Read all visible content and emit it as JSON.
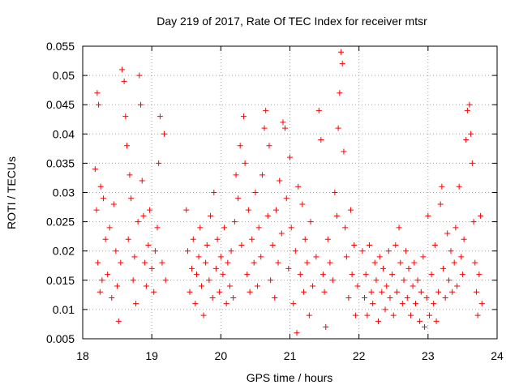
{
  "chart_data": {
    "type": "scatter",
    "title": "Day 219 of 2017, Rate Of TEC Index for receiver mtsr",
    "xlabel": "GPS time / hours",
    "ylabel": "ROTI / TECUs",
    "xlim": [
      18,
      24
    ],
    "ylim": [
      0.005,
      0.055
    ],
    "xticks": [
      "18",
      "19",
      "20",
      "21",
      "22",
      "23",
      "24"
    ],
    "yticks": [
      "0.005",
      "0.01",
      "0.015",
      "0.02",
      "0.025",
      "0.03",
      "0.035",
      "0.04",
      "0.045",
      "0.05",
      "0.055"
    ],
    "grid": true,
    "marker": "+",
    "color": "#ff0000",
    "series": [
      {
        "points": [
          [
            18.18,
            0.034
          ],
          [
            18.21,
            0.047
          ],
          [
            18.23,
            0.045
          ],
          [
            18.2,
            0.027
          ],
          [
            18.26,
            0.031
          ],
          [
            18.3,
            0.029
          ],
          [
            18.22,
            0.018
          ],
          [
            18.25,
            0.013
          ],
          [
            18.28,
            0.015
          ],
          [
            18.33,
            0.022
          ],
          [
            18.36,
            0.016
          ],
          [
            18.39,
            0.024
          ],
          [
            18.42,
            0.012
          ],
          [
            18.45,
            0.028
          ],
          [
            18.48,
            0.02
          ],
          [
            18.5,
            0.014
          ],
          [
            18.52,
            0.008
          ],
          [
            18.55,
            0.018
          ],
          [
            18.57,
            0.051
          ],
          [
            18.6,
            0.049
          ],
          [
            18.62,
            0.043
          ],
          [
            18.64,
            0.038
          ],
          [
            18.66,
            0.022
          ],
          [
            18.68,
            0.033
          ],
          [
            18.7,
            0.029
          ],
          [
            18.73,
            0.015
          ],
          [
            18.75,
            0.019
          ],
          [
            18.77,
            0.011
          ],
          [
            18.8,
            0.025
          ],
          [
            18.82,
            0.05
          ],
          [
            18.84,
            0.045
          ],
          [
            18.86,
            0.032
          ],
          [
            18.88,
            0.026
          ],
          [
            18.9,
            0.018
          ],
          [
            18.92,
            0.014
          ],
          [
            18.95,
            0.021
          ],
          [
            18.97,
            0.027
          ],
          [
            19.0,
            0.017
          ],
          [
            19.03,
            0.013
          ],
          [
            19.05,
            0.02
          ],
          [
            19.08,
            0.024
          ],
          [
            19.1,
            0.035
          ],
          [
            19.12,
            0.043
          ],
          [
            19.15,
            0.018
          ],
          [
            19.18,
            0.04
          ],
          [
            19.2,
            0.015
          ],
          [
            19.5,
            0.027
          ],
          [
            19.52,
            0.02
          ],
          [
            19.55,
            0.013
          ],
          [
            19.58,
            0.017
          ],
          [
            19.6,
            0.022
          ],
          [
            19.63,
            0.011
          ],
          [
            19.65,
            0.016
          ],
          [
            19.68,
            0.019
          ],
          [
            19.7,
            0.024
          ],
          [
            19.72,
            0.014
          ],
          [
            19.75,
            0.009
          ],
          [
            19.78,
            0.018
          ],
          [
            19.8,
            0.021
          ],
          [
            19.83,
            0.015
          ],
          [
            19.85,
            0.026
          ],
          [
            19.88,
            0.012
          ],
          [
            19.9,
            0.03
          ],
          [
            19.93,
            0.017
          ],
          [
            19.95,
            0.022
          ],
          [
            19.98,
            0.013
          ],
          [
            20.0,
            0.019
          ],
          [
            20.03,
            0.016
          ],
          [
            20.05,
            0.024
          ],
          [
            20.08,
            0.011
          ],
          [
            20.1,
            0.018
          ],
          [
            20.13,
            0.014
          ],
          [
            20.15,
            0.02
          ],
          [
            20.18,
            0.012
          ],
          [
            20.2,
            0.025
          ],
          [
            20.22,
            0.033
          ],
          [
            20.25,
            0.029
          ],
          [
            20.28,
            0.038
          ],
          [
            20.3,
            0.021
          ],
          [
            20.33,
            0.043
          ],
          [
            20.35,
            0.035
          ],
          [
            20.38,
            0.016
          ],
          [
            20.4,
            0.027
          ],
          [
            20.42,
            0.013
          ],
          [
            20.45,
            0.022
          ],
          [
            20.48,
            0.018
          ],
          [
            20.5,
            0.03
          ],
          [
            20.53,
            0.014
          ],
          [
            20.55,
            0.024
          ],
          [
            20.58,
            0.019
          ],
          [
            20.6,
            0.033
          ],
          [
            20.63,
            0.041
          ],
          [
            20.65,
            0.044
          ],
          [
            20.68,
            0.026
          ],
          [
            20.7,
            0.038
          ],
          [
            20.72,
            0.015
          ],
          [
            20.75,
            0.021
          ],
          [
            20.78,
            0.012
          ],
          [
            20.8,
            0.027
          ],
          [
            20.83,
            0.018
          ],
          [
            20.85,
            0.032
          ],
          [
            20.88,
            0.023
          ],
          [
            20.9,
            0.042
          ],
          [
            20.93,
            0.041
          ],
          [
            20.95,
            0.029
          ],
          [
            20.98,
            0.017
          ],
          [
            21.0,
            0.036
          ],
          [
            21.02,
            0.024
          ],
          [
            21.05,
            0.011
          ],
          [
            21.08,
            0.02
          ],
          [
            21.1,
            0.006
          ],
          [
            21.12,
            0.031
          ],
          [
            21.15,
            0.016
          ],
          [
            21.18,
            0.028
          ],
          [
            21.2,
            0.013
          ],
          [
            21.22,
            0.022
          ],
          [
            21.25,
            0.018
          ],
          [
            21.28,
            0.009
          ],
          [
            21.3,
            0.025
          ],
          [
            21.33,
            0.014
          ],
          [
            21.38,
            0.019
          ],
          [
            21.42,
            0.044
          ],
          [
            21.45,
            0.039
          ],
          [
            21.48,
            0.016
          ],
          [
            21.5,
            0.013
          ],
          [
            21.52,
            0.007
          ],
          [
            21.55,
            0.022
          ],
          [
            21.58,
            0.018
          ],
          [
            21.62,
            0.015
          ],
          [
            21.65,
            0.03
          ],
          [
            21.68,
            0.026
          ],
          [
            21.7,
            0.041
          ],
          [
            21.72,
            0.047
          ],
          [
            21.74,
            0.054
          ],
          [
            21.76,
            0.052
          ],
          [
            21.78,
            0.037
          ],
          [
            21.8,
            0.024
          ],
          [
            21.82,
            0.019
          ],
          [
            21.85,
            0.012
          ],
          [
            21.88,
            0.027
          ],
          [
            21.9,
            0.016
          ],
          [
            21.93,
            0.021
          ],
          [
            21.95,
            0.009
          ],
          [
            21.98,
            0.014
          ],
          [
            22.05,
            0.02
          ],
          [
            22.08,
            0.012
          ],
          [
            22.1,
            0.016
          ],
          [
            22.12,
            0.009
          ],
          [
            22.15,
            0.021
          ],
          [
            22.18,
            0.013
          ],
          [
            22.2,
            0.011
          ],
          [
            22.23,
            0.018
          ],
          [
            22.25,
            0.015
          ],
          [
            22.28,
            0.008
          ],
          [
            22.3,
            0.019
          ],
          [
            22.33,
            0.013
          ],
          [
            22.35,
            0.017
          ],
          [
            22.38,
            0.01
          ],
          [
            22.4,
            0.014
          ],
          [
            22.43,
            0.02
          ],
          [
            22.45,
            0.012
          ],
          [
            22.48,
            0.016
          ],
          [
            22.5,
            0.009
          ],
          [
            22.53,
            0.021
          ],
          [
            22.55,
            0.013
          ],
          [
            22.58,
            0.024
          ],
          [
            22.6,
            0.018
          ],
          [
            22.63,
            0.011
          ],
          [
            22.65,
            0.015
          ],
          [
            22.68,
            0.02
          ],
          [
            22.7,
            0.012
          ],
          [
            22.72,
            0.017
          ],
          [
            22.75,
            0.009
          ],
          [
            22.78,
            0.014
          ],
          [
            22.8,
            0.018
          ],
          [
            22.82,
            0.011
          ],
          [
            22.85,
            0.015
          ],
          [
            22.88,
            0.008
          ],
          [
            22.9,
            0.013
          ],
          [
            22.93,
            0.019
          ],
          [
            22.95,
            0.007
          ],
          [
            22.98,
            0.012
          ],
          [
            23.0,
            0.026
          ],
          [
            23.02,
            0.009
          ],
          [
            23.05,
            0.016
          ],
          [
            23.08,
            0.011
          ],
          [
            23.1,
            0.021
          ],
          [
            23.12,
            0.008
          ],
          [
            23.15,
            0.013
          ],
          [
            23.18,
            0.028
          ],
          [
            23.2,
            0.031
          ],
          [
            23.22,
            0.017
          ],
          [
            23.25,
            0.012
          ],
          [
            23.28,
            0.023
          ],
          [
            23.3,
            0.015
          ],
          [
            23.33,
            0.02
          ],
          [
            23.35,
            0.013
          ],
          [
            23.38,
            0.018
          ],
          [
            23.4,
            0.024
          ],
          [
            23.42,
            0.014
          ],
          [
            23.45,
            0.031
          ],
          [
            23.48,
            0.019
          ],
          [
            23.5,
            0.016
          ],
          [
            23.52,
            0.022
          ],
          [
            23.55,
            0.039
          ],
          [
            23.57,
            0.044
          ],
          [
            23.6,
            0.045
          ],
          [
            23.62,
            0.04
          ],
          [
            23.64,
            0.035
          ],
          [
            23.66,
            0.025
          ],
          [
            23.68,
            0.018
          ],
          [
            23.7,
            0.013
          ],
          [
            23.72,
            0.009
          ],
          [
            23.74,
            0.016
          ],
          [
            23.76,
            0.026
          ],
          [
            23.78,
            0.011
          ]
        ]
      }
    ]
  }
}
